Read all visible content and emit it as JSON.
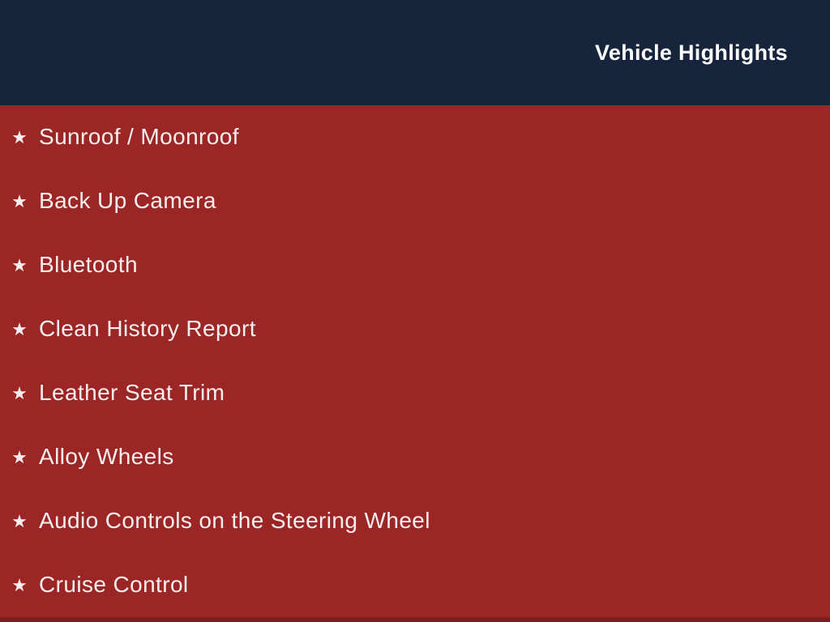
{
  "header": {
    "title": "Vehicle Highlights",
    "bg_color": "#16243c",
    "text_color": "#fdfdfd"
  },
  "list": {
    "bullet_icon": "star-icon",
    "bullet_glyph": "★",
    "items": [
      "Sunroof / Moonroof",
      "Back Up Camera",
      "Bluetooth",
      "Clean History Report",
      "Leather Seat Trim",
      "Alloy Wheels",
      "Audio Controls on the Steering Wheel",
      "Cruise Control"
    ]
  },
  "colors": {
    "body_bg": "#9c2525",
    "bottom_edge": "#7b1d1d",
    "list_text": "#f6efee"
  }
}
